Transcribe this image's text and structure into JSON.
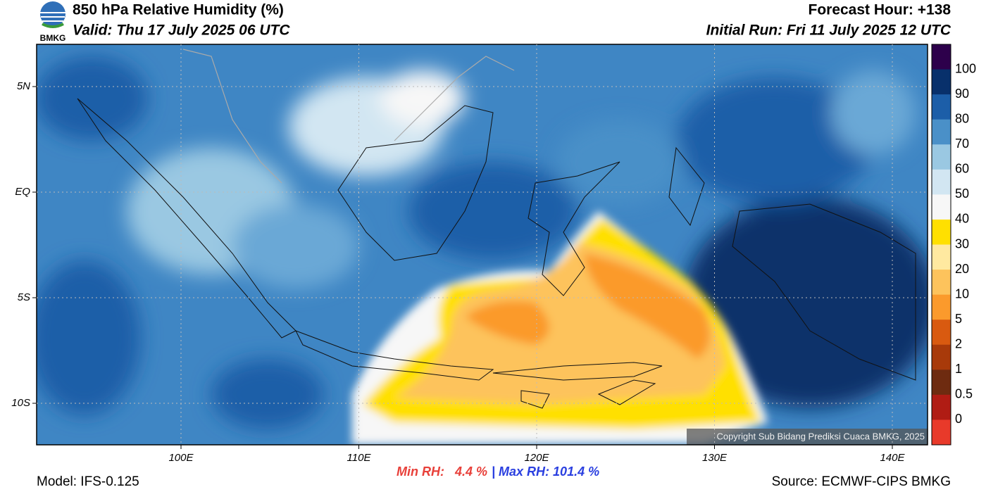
{
  "header": {
    "title": "850 hPa Relative Humidity (%)",
    "valid": "Valid: Thu 17 July 2025 06 UTC",
    "forecast_hour": "Forecast Hour: +138",
    "initial_run": "Initial Run: Fri 11 July 2025 12 UTC",
    "logo_text": "BMKG"
  },
  "axes": {
    "lat_labels": [
      "5N",
      "EQ",
      "5S",
      "10S"
    ],
    "lon_labels": [
      "100E",
      "110E",
      "120E",
      "130E",
      "140E"
    ]
  },
  "colorbar": {
    "labels": [
      "100",
      "90",
      "80",
      "70",
      "60",
      "50",
      "40",
      "30",
      "20",
      "10",
      "5",
      "2",
      "1",
      "0.5",
      "0"
    ],
    "colors": [
      "#2d004b",
      "#08306b",
      "#1c5ea8",
      "#4a90c8",
      "#9ac8e2",
      "#d2e6f2",
      "#f7f7f7",
      "#ffe000",
      "#ffe9a0",
      "#fdc35c",
      "#fb9a2c",
      "#d95a10",
      "#a83a0a",
      "#6e2b10",
      "#b01c14",
      "#e83a2a"
    ]
  },
  "footer": {
    "model": "Model: IFS-0.125",
    "min_rh": "Min RH:   4.4 %",
    "max_rh": "| Max RH: 101.4 %",
    "source": "Source: ECMWF-CIPS BMKG",
    "copyright": "Copyright Sub Bidang Prediksi Cuaca BMKG, 2025"
  }
}
